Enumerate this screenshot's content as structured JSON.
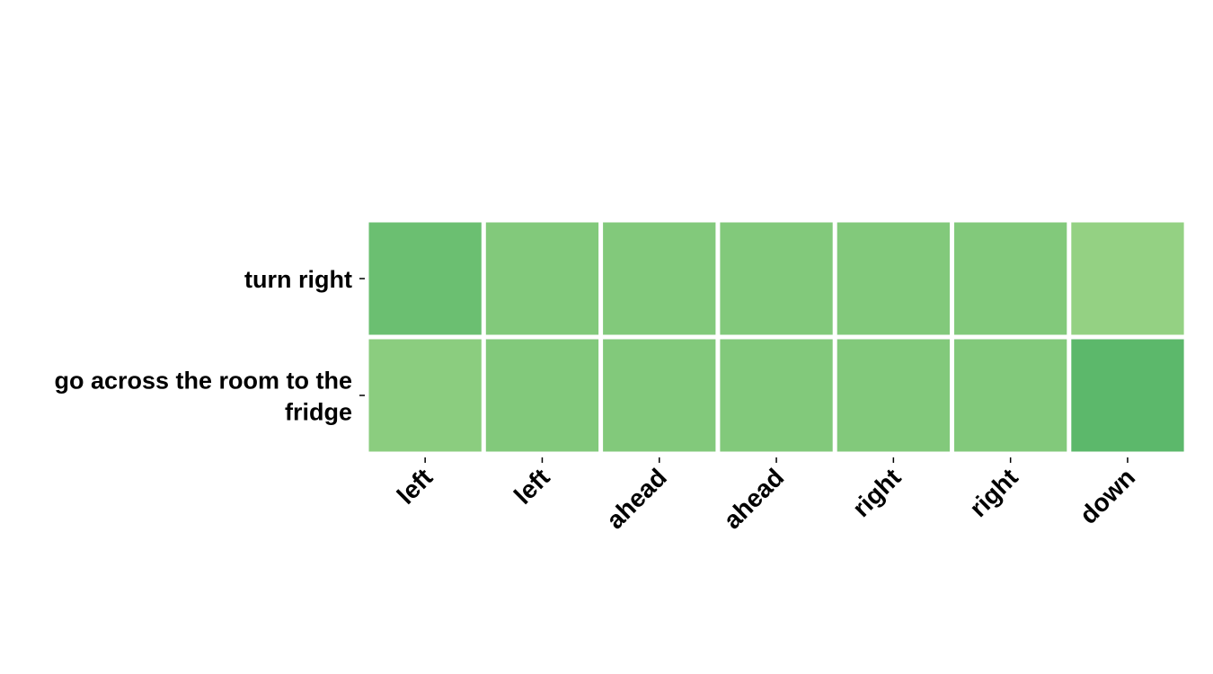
{
  "chart_data": {
    "type": "heatmap",
    "title": "",
    "xlabel": "",
    "ylabel": "",
    "x_categories": [
      "left",
      "left",
      "ahead",
      "ahead",
      "right",
      "right",
      "down"
    ],
    "y_categories": [
      [
        "turn right"
      ],
      [
        "go across the room to the",
        "fridge"
      ]
    ],
    "values": [
      [
        0.22,
        0.14,
        0.14,
        0.14,
        0.14,
        0.14,
        0.08
      ],
      [
        0.11,
        0.14,
        0.14,
        0.14,
        0.14,
        0.14,
        0.27
      ]
    ],
    "colorscale": {
      "low_color": "#94d183",
      "high_color": "#5cb86b",
      "vmin": 0.08,
      "vmax": 0.27
    },
    "legend": "none",
    "grid": false
  }
}
